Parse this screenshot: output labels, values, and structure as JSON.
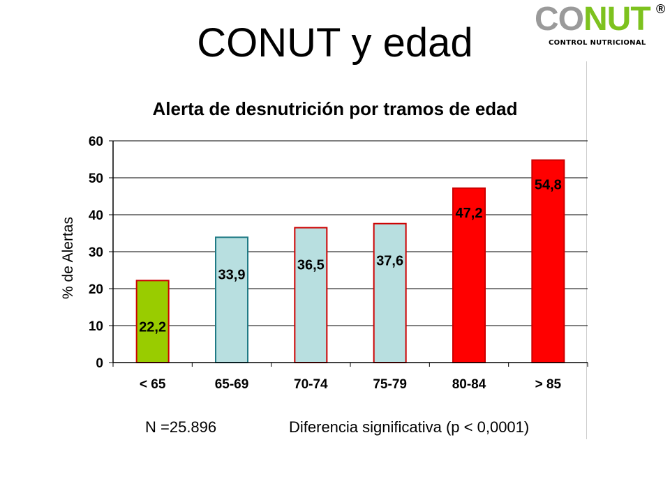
{
  "slide_title": "CONUT y edad",
  "logo": {
    "word_gray": "CO",
    "word_green": "NUT",
    "registered": "®",
    "subtitle": "CONTROL NUTRICIONAL",
    "gray_color": "#9a9a9a",
    "green_color": "#7dc21e"
  },
  "chart_data": {
    "type": "bar",
    "title": "Alerta de desnutrición por tramos de edad",
    "ylabel": "% de Alertas",
    "xlabel": "",
    "categories": [
      "< 65",
      "65-69",
      "70-74",
      "75-79",
      "80-84",
      "> 85"
    ],
    "values": [
      22.2,
      33.9,
      36.5,
      37.6,
      47.2,
      54.8
    ],
    "value_labels": [
      "22,2",
      "33,9",
      "36,5",
      "37,6",
      "47,2",
      "54,8"
    ],
    "ylim": [
      0,
      60
    ],
    "yticks": [
      "0",
      "10",
      "20",
      "30",
      "40",
      "50",
      "60"
    ],
    "grid": true,
    "bar_fills": [
      "#99cc00",
      "#b8dfe0",
      "#b8dfe0",
      "#b8dfe0",
      "#ff0000",
      "#ff0000"
    ],
    "bar_strokes": [
      "#cc0000",
      "#1f7a85",
      "#cc0000",
      "#cc0000",
      "#cc0000",
      "#cc0000"
    ]
  },
  "footer": {
    "sample_size": "N =25.896",
    "significance": "Diferencia significativa  (p < 0,0001)"
  }
}
